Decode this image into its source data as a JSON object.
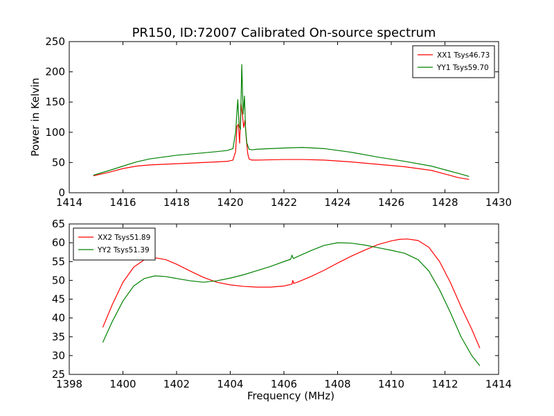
{
  "figure_title": "PR150, ID:72007 Calibrated On-source spectrum",
  "chart_data": [
    {
      "type": "line",
      "xlim": [
        1414,
        1430
      ],
      "ylim": [
        0,
        250
      ],
      "xticks": [
        1414,
        1416,
        1418,
        1420,
        1422,
        1424,
        1426,
        1428,
        1430
      ],
      "yticks": [
        0,
        50,
        100,
        150,
        200,
        250
      ],
      "xlabel": "",
      "ylabel": "Power in Kelvin",
      "grid": false,
      "legend_position": "top-right",
      "series": [
        {
          "name": "XX1 Tsys46.73",
          "color": "#ff0000",
          "x": [
            1414.9,
            1415.5,
            1416.0,
            1416.5,
            1417.0,
            1417.5,
            1418.0,
            1418.5,
            1419.0,
            1419.5,
            1419.9,
            1420.1,
            1420.2,
            1420.25,
            1420.3,
            1420.35,
            1420.4,
            1420.45,
            1420.5,
            1420.55,
            1420.6,
            1420.65,
            1420.7,
            1420.8,
            1421.0,
            1422.0,
            1422.7,
            1423.5,
            1424.5,
            1425.5,
            1426.5,
            1427.5,
            1428.0,
            1428.5,
            1428.9
          ],
          "y": [
            28,
            34,
            40,
            44,
            46,
            47,
            48,
            49,
            50,
            51,
            52,
            54,
            68,
            110,
            113,
            82,
            148,
            130,
            108,
            120,
            88,
            65,
            56,
            54,
            54,
            55,
            55,
            54,
            51,
            47,
            43,
            37,
            31,
            25,
            22
          ]
        },
        {
          "name": "YY1 Tsys59.70",
          "color": "#008000",
          "x": [
            1414.9,
            1415.5,
            1416.0,
            1416.5,
            1417.0,
            1417.5,
            1418.0,
            1418.5,
            1419.0,
            1419.5,
            1419.9,
            1420.1,
            1420.2,
            1420.28,
            1420.33,
            1420.38,
            1420.43,
            1420.48,
            1420.53,
            1420.57,
            1420.62,
            1420.7,
            1420.8,
            1421.0,
            1422.0,
            1422.7,
            1423.5,
            1424.5,
            1425.5,
            1426.5,
            1427.5,
            1428.0,
            1428.5,
            1428.9
          ],
          "y": [
            29,
            37,
            44,
            51,
            56,
            59,
            62,
            64,
            66,
            68,
            70,
            73,
            100,
            154,
            110,
            105,
            212,
            130,
            160,
            105,
            82,
            72,
            71,
            72,
            74,
            75,
            73,
            67,
            59,
            52,
            44,
            38,
            32,
            27
          ]
        }
      ]
    },
    {
      "type": "line",
      "xlim": [
        1398,
        1414
      ],
      "ylim": [
        25,
        65
      ],
      "xticks": [
        1398,
        1400,
        1402,
        1404,
        1406,
        1408,
        1410,
        1412,
        1414
      ],
      "yticks": [
        25,
        30,
        35,
        40,
        45,
        50,
        55,
        60,
        65
      ],
      "xlabel": "Frequency (MHz)",
      "ylabel": "",
      "grid": false,
      "legend_position": "top-left",
      "series": [
        {
          "name": "XX2 Tsys51.89",
          "color": "#ff0000",
          "x": [
            1399.25,
            1399.6,
            1400.0,
            1400.4,
            1400.8,
            1401.2,
            1401.6,
            1402.0,
            1402.5,
            1403.0,
            1403.5,
            1404.0,
            1404.5,
            1405.0,
            1405.5,
            1406.0,
            1406.3,
            1406.33,
            1406.36,
            1406.5,
            1407.0,
            1407.5,
            1408.0,
            1408.5,
            1409.0,
            1409.5,
            1410.0,
            1410.3,
            1410.6,
            1411.0,
            1411.4,
            1411.8,
            1412.2,
            1412.6,
            1413.0,
            1413.3
          ],
          "y": [
            37.5,
            43.5,
            49.5,
            53.5,
            55.5,
            56,
            55.5,
            54.3,
            52.5,
            50.8,
            49.5,
            48.8,
            48.4,
            48.2,
            48.2,
            48.5,
            49,
            50,
            49.2,
            49.5,
            51,
            52.7,
            54.6,
            56.4,
            58,
            59.5,
            60.5,
            60.9,
            61,
            60.6,
            58.8,
            55,
            49.5,
            43,
            37,
            32
          ]
        },
        {
          "name": "YY2 Tsys51.39",
          "color": "#008000",
          "x": [
            1399.25,
            1399.6,
            1400.0,
            1400.4,
            1400.8,
            1401.2,
            1401.6,
            1402.0,
            1402.5,
            1403.0,
            1403.5,
            1404.0,
            1404.5,
            1405.0,
            1405.5,
            1406.0,
            1406.25,
            1406.3,
            1406.35,
            1406.5,
            1407.0,
            1407.5,
            1408.0,
            1408.5,
            1409.0,
            1409.5,
            1410.0,
            1410.5,
            1411.0,
            1411.4,
            1411.8,
            1412.2,
            1412.6,
            1413.0,
            1413.3
          ],
          "y": [
            33.5,
            39,
            44.5,
            48.5,
            50.5,
            51.2,
            51,
            50.5,
            49.9,
            49.5,
            49.9,
            50.6,
            51.5,
            52.6,
            53.7,
            55,
            55.6,
            56.7,
            55.8,
            56.3,
            57.9,
            59.3,
            60,
            59.9,
            59.4,
            58.7,
            58,
            57.2,
            55.5,
            52.5,
            47.5,
            41.5,
            35,
            30,
            27.3
          ]
        }
      ]
    }
  ]
}
